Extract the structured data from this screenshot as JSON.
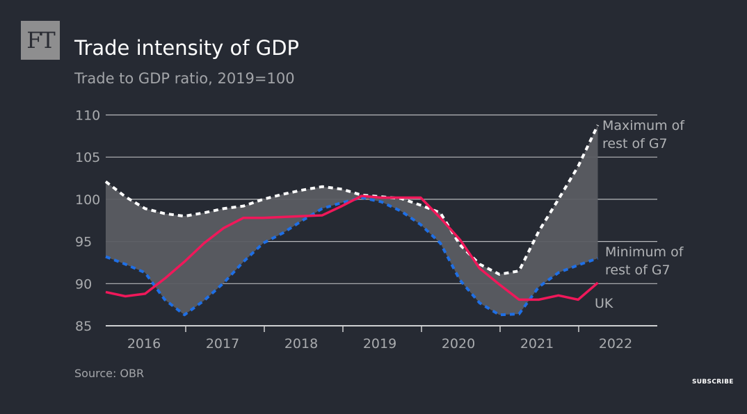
{
  "brand": {
    "logo_text": "FT"
  },
  "title": "Trade intensity of GDP",
  "subtitle": "Trade to GDP ratio, 2019=100",
  "source": "Source: OBR",
  "subscribe_label": "SUBSCRIBE",
  "chart_data": {
    "type": "line",
    "title": "Trade intensity of GDP",
    "subtitle": "Trade to GDP ratio, 2019=100",
    "xlabel": "",
    "ylabel": "",
    "ylim": [
      85,
      110
    ],
    "yticks": [
      110,
      105,
      100,
      95,
      90,
      85
    ],
    "xtick_labels": [
      "2016",
      "2017",
      "2018",
      "2019",
      "2020",
      "2021",
      "2022"
    ],
    "grid": true,
    "x": [
      "2016 Q1",
      "2016 Q2",
      "2016 Q3",
      "2016 Q4",
      "2017 Q1",
      "2017 Q2",
      "2017 Q3",
      "2017 Q4",
      "2018 Q1",
      "2018 Q2",
      "2018 Q3",
      "2018 Q4",
      "2019 Q1",
      "2019 Q2",
      "2019 Q3",
      "2019 Q4",
      "2020 Q1",
      "2020 Q2",
      "2020 Q3",
      "2020 Q4",
      "2021 Q1",
      "2021 Q2",
      "2021 Q3",
      "2021 Q4",
      "2022 Q1",
      "2022 Q2"
    ],
    "series": [
      {
        "name": "Maximum of rest of G7",
        "label_lines": [
          "Maximum of",
          "rest of G7"
        ],
        "color": "#ffffff",
        "style": "dashed",
        "values": [
          102.1,
          100.3,
          98.9,
          98.3,
          98.0,
          98.4,
          98.9,
          99.2,
          100.0,
          100.6,
          101.1,
          101.5,
          101.2,
          100.5,
          100.3,
          100.1,
          99.3,
          98.4,
          94.6,
          92.3,
          91.1,
          91.5,
          96.2,
          100.0,
          103.9,
          108.8
        ]
      },
      {
        "name": "Minimum of rest of G7",
        "label_lines": [
          "Minimum of",
          "rest of G7"
        ],
        "color": "#1f6fe5",
        "style": "dashed",
        "values": [
          93.2,
          92.3,
          91.3,
          88.1,
          86.3,
          88.0,
          90.1,
          92.6,
          94.8,
          96.0,
          97.5,
          98.9,
          99.6,
          100.2,
          99.7,
          98.6,
          97.0,
          94.8,
          90.4,
          87.7,
          86.3,
          86.4,
          89.6,
          91.3,
          92.2,
          93.0
        ]
      },
      {
        "name": "UK",
        "label_lines": [
          "UK"
        ],
        "color": "#f0185a",
        "style": "solid",
        "values": [
          89.0,
          88.5,
          88.8,
          90.6,
          92.6,
          94.8,
          96.6,
          97.8,
          97.8,
          97.9,
          98.0,
          98.1,
          99.2,
          100.4,
          100.2,
          100.2,
          100.2,
          97.8,
          95.2,
          91.8,
          89.9,
          88.1,
          88.1,
          88.6,
          88.1,
          90.1
        ]
      }
    ],
    "band_color": "#5a5c62",
    "grid_color": "#b8b9bc"
  }
}
